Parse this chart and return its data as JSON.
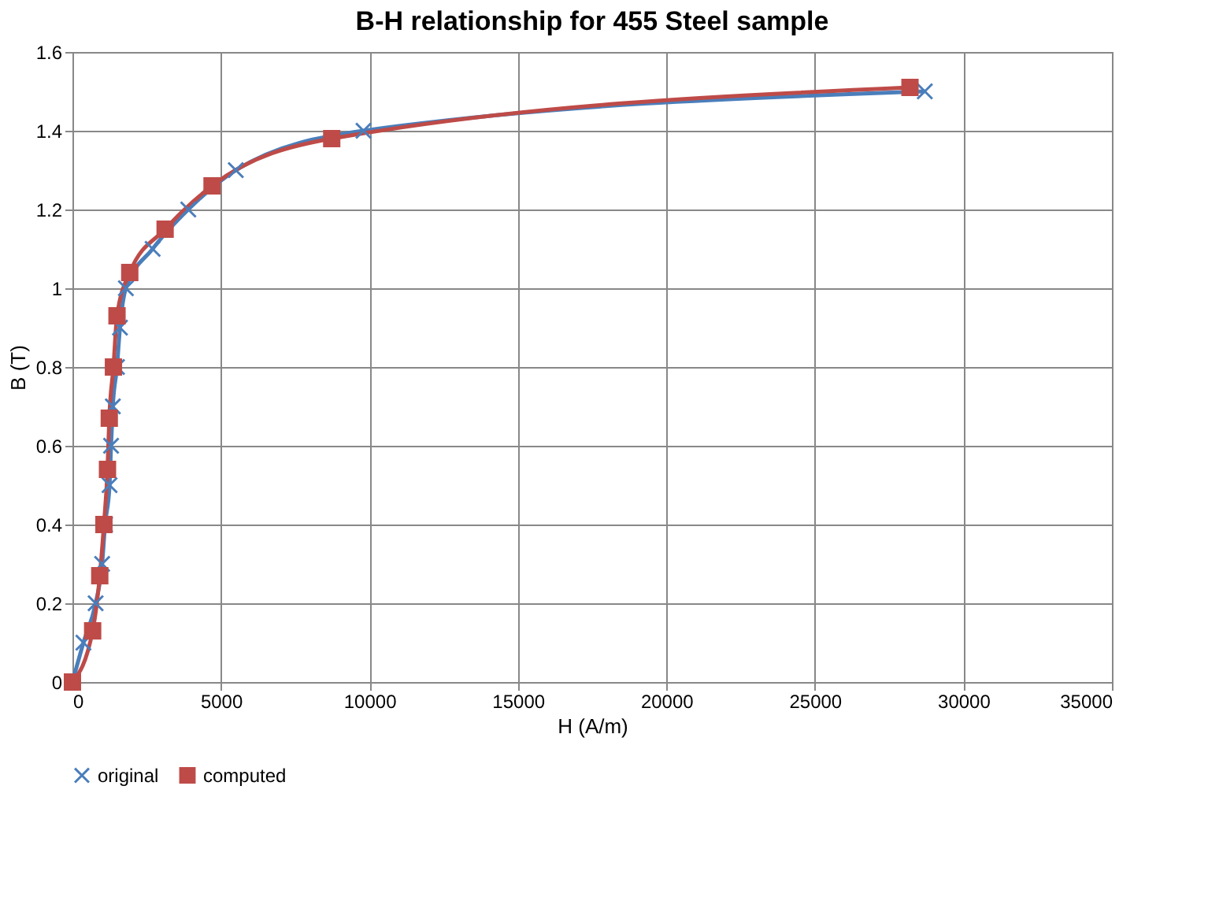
{
  "chart_data": {
    "type": "line",
    "title": "B-H relationship for 455 Steel sample",
    "xlabel": "H (A/m)",
    "ylabel": "B (T)",
    "series": [
      {
        "name": "original",
        "color": "#4a7ebb",
        "marker": "cross",
        "x": [
          0,
          370,
          780,
          1000,
          1100,
          1250,
          1300,
          1360,
          1500,
          1600,
          1800,
          2700,
          3900,
          5500,
          9800,
          28700
        ],
        "values": [
          0,
          0.1,
          0.2,
          0.3,
          0.4,
          0.5,
          0.6,
          0.7,
          0.8,
          0.9,
          1.0,
          1.1,
          1.2,
          1.3,
          1.4,
          1.5
        ]
      },
      {
        "name": "computed",
        "color": "#be4b48",
        "marker": "square",
        "x": [
          0,
          680,
          920,
          1060,
          1180,
          1240,
          1380,
          1500,
          1930,
          3120,
          4700,
          8730,
          28200
        ],
        "values": [
          0,
          0.13,
          0.27,
          0.4,
          0.54,
          0.67,
          0.8,
          0.93,
          1.04,
          1.15,
          1.26,
          1.38,
          1.51
        ]
      }
    ],
    "xlim": [
      0,
      35000
    ],
    "xticks": [
      0,
      5000,
      10000,
      15000,
      20000,
      25000,
      30000,
      35000
    ],
    "ylim": [
      0,
      1.6
    ],
    "yticks": [
      0,
      0.2,
      0.4,
      0.6,
      0.8,
      1,
      1.2,
      1.4,
      1.6
    ],
    "grid": true,
    "legend": "bottom"
  }
}
